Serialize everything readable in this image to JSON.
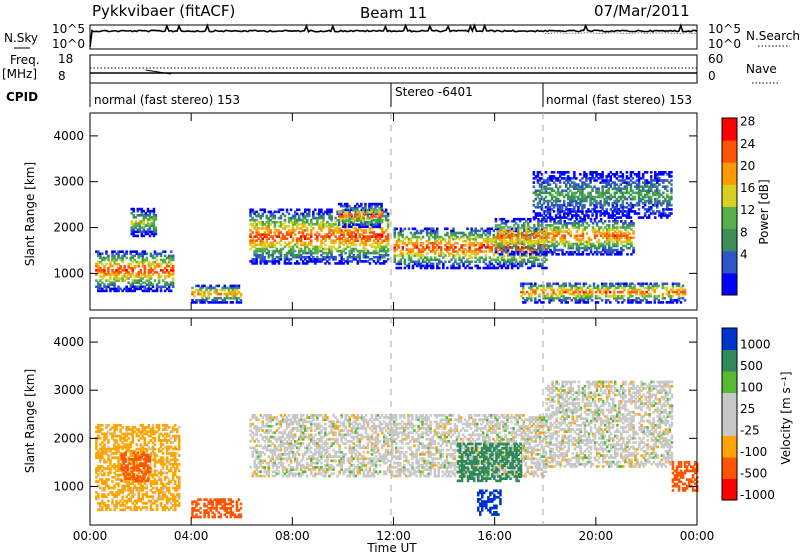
{
  "header": {
    "station": "Pykkvibaer (fitACF)",
    "beam": "Beam 11",
    "date": "07/Mar/2011"
  },
  "left_labels": {
    "nsky": "N.Sky",
    "freq": "Freq.",
    "mhz": "[MHz]",
    "cpid": "CPID",
    "sky_ticks": [
      "10^5",
      "10^0"
    ],
    "freq_ticks": [
      "18",
      "8"
    ]
  },
  "right_labels": {
    "nsearch": "N.Search",
    "nave": "Nave",
    "sky_ticks": [
      "10^5",
      "10^0"
    ],
    "nave_ticks": [
      "60",
      "0"
    ]
  },
  "cpid": {
    "segments": [
      {
        "label": "normal (fast stereo) 153",
        "start_h": 0.0
      },
      {
        "label": "Stereo -6401",
        "start_h": 12.0
      },
      {
        "label": "normal (fast stereo) 153",
        "start_h": 18.0
      }
    ]
  },
  "panels": {
    "power": {
      "ylabel": "Slant Range [km]",
      "yticks": [
        "4000",
        "3000",
        "2000",
        "1000"
      ],
      "cbar_label": "Power [dB]",
      "cbar_ticks": [
        "28",
        "24",
        "20",
        "16",
        "12",
        "8",
        "4"
      ]
    },
    "velocity": {
      "ylabel": "Slant Range [km]",
      "yticks": [
        "4000",
        "3000",
        "2000",
        "1000"
      ],
      "cbar_label": "Velocity [m s⁻¹]",
      "cbar_ticks": [
        "1000",
        "500",
        "100",
        "25",
        "-25",
        "-100",
        "-500",
        "-1000"
      ]
    }
  },
  "xaxis": {
    "label": "Time UT",
    "ticks": [
      "00:00",
      "04:00",
      "08:00",
      "12:00",
      "16:00",
      "20:00",
      "00:00"
    ]
  },
  "colors": {
    "power_scale": [
      "#0000ff",
      "#2f55c8",
      "#3c8f5a",
      "#55b04c",
      "#d8d020",
      "#ff9a00",
      "#ff5500",
      "#ff0000"
    ],
    "velocity_scale": [
      "#ff0000",
      "#ff5500",
      "#ffa500",
      "#c8c8c8",
      "#c8c8c8",
      "#55bb33",
      "#2f8a5a",
      "#0033cc"
    ]
  },
  "chart_data": [
    {
      "type": "heatmap",
      "panel": "power",
      "x_unit": "hours UT",
      "xlim": [
        0,
        24
      ],
      "ylim": [
        200,
        4500
      ],
      "y_unit": "km",
      "zlim": [
        0,
        30
      ],
      "z_unit": "dB",
      "bands": [
        {
          "t0": 0.2,
          "t1": 3.3,
          "r0": 600,
          "r1": 1500,
          "peak": 28
        },
        {
          "t0": 1.6,
          "t1": 2.6,
          "r0": 1800,
          "r1": 2400,
          "peak": 18
        },
        {
          "t0": 4.0,
          "t1": 6.0,
          "r0": 350,
          "r1": 750,
          "peak": 24
        },
        {
          "t0": 6.3,
          "t1": 11.8,
          "r0": 1200,
          "r1": 2400,
          "peak": 28
        },
        {
          "t0": 9.8,
          "t1": 11.5,
          "r0": 2000,
          "r1": 2500,
          "peak": 26
        },
        {
          "t0": 12.0,
          "t1": 18.0,
          "r0": 1100,
          "r1": 2000,
          "peak": 28
        },
        {
          "t0": 16.0,
          "t1": 21.5,
          "r0": 1400,
          "r1": 2200,
          "peak": 26
        },
        {
          "t0": 17.0,
          "t1": 23.5,
          "r0": 350,
          "r1": 800,
          "peak": 26
        },
        {
          "t0": 17.5,
          "t1": 23.0,
          "r0": 2200,
          "r1": 3200,
          "peak": 12
        }
      ]
    },
    {
      "type": "heatmap",
      "panel": "velocity",
      "x_unit": "hours UT",
      "xlim": [
        0,
        24
      ],
      "ylim": [
        200,
        4500
      ],
      "y_unit": "km",
      "zlim": [
        -1000,
        1000
      ],
      "z_unit": "m s-1",
      "bands": [
        {
          "t0": 0.2,
          "t1": 3.5,
          "r0": 500,
          "r1": 2300,
          "v": -50
        },
        {
          "t0": 1.2,
          "t1": 2.4,
          "r0": 1100,
          "r1": 1700,
          "v": -300
        },
        {
          "t0": 4.0,
          "t1": 6.0,
          "r0": 350,
          "r1": 750,
          "v": -150
        },
        {
          "t0": 6.3,
          "t1": 18.0,
          "r0": 1200,
          "r1": 2500,
          "v": 0
        },
        {
          "t0": 14.5,
          "t1": 17.0,
          "r0": 1100,
          "r1": 1900,
          "v": 200
        },
        {
          "t0": 15.3,
          "t1": 16.2,
          "r0": 400,
          "r1": 900,
          "v": 900
        },
        {
          "t0": 18.0,
          "t1": 23.0,
          "r0": 1400,
          "r1": 3200,
          "v": 0
        },
        {
          "t0": 23.0,
          "t1": 24.0,
          "r0": 900,
          "r1": 1500,
          "v": -400
        }
      ]
    }
  ]
}
